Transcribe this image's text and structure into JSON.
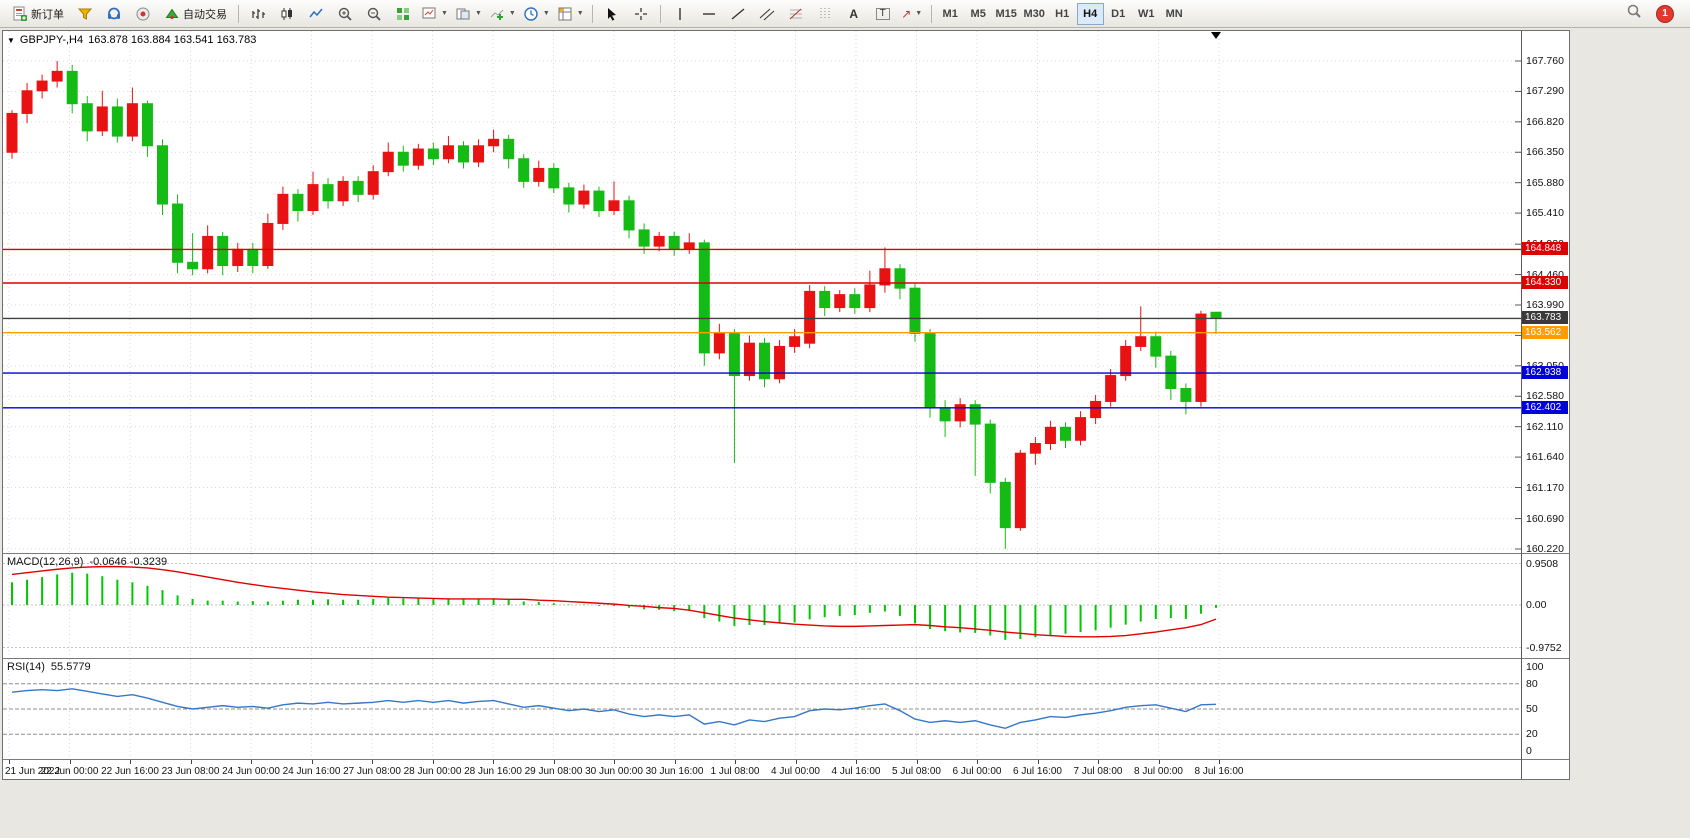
{
  "toolbar": {
    "new_order": "新订单",
    "autotrading": "自动交易",
    "timeframes": [
      "M1",
      "M5",
      "M15",
      "M30",
      "H1",
      "H4",
      "D1",
      "W1",
      "MN"
    ],
    "active_timeframe": "H4",
    "notification_badge": "1",
    "text_tool": "A",
    "label_tool": "T",
    "arrow_tool": "↗"
  },
  "chart_header": {
    "symbol": "GBPJPY-,H4",
    "ohlc": "163.878 163.884 163.541 163.783"
  },
  "price_axis": {
    "ticks": [
      "167.760",
      "167.290",
      "166.820",
      "166.350",
      "165.880",
      "165.410",
      "164.930",
      "164.460",
      "163.990",
      "163.520",
      "163.050",
      "162.580",
      "162.110",
      "161.640",
      "161.170",
      "160.690",
      "160.220"
    ],
    "badges": [
      {
        "text": "164.848",
        "bg": "#DC0000"
      },
      {
        "text": "164.330",
        "bg": "#DC0000"
      },
      {
        "text": "163.783",
        "bg": "#3a3a3a"
      },
      {
        "text": "163.562",
        "bg": "#FF9D00"
      },
      {
        "text": "162.938",
        "bg": "#0000D8"
      },
      {
        "text": "162.402",
        "bg": "#0000D8"
      }
    ]
  },
  "time_axis": {
    "labels": [
      "21 Jun 2022",
      "22 Jun 00:00",
      "22 Jun 16:00",
      "23 Jun 08:00",
      "24 Jun 00:00",
      "24 Jun 16:00",
      "27 Jun 08:00",
      "28 Jun 00:00",
      "28 Jun 16:00",
      "29 Jun 08:00",
      "30 Jun 00:00",
      "30 Jun 16:00",
      "1 Jul 08:00",
      "4 Jul 00:00",
      "4 Jul 16:00",
      "5 Jul 08:00",
      "6 Jul 00:00",
      "6 Jul 16:00",
      "7 Jul 08:00",
      "8 Jul 00:00",
      "8 Jul 16:00"
    ]
  },
  "indicators": {
    "macd": {
      "label": "MACD(12,26,9)",
      "values": "-0.0646 -0.3239",
      "ticks": [
        "0.9508",
        "0.00",
        "-0.9752"
      ]
    },
    "rsi": {
      "label": "RSI(14)",
      "value": "55.5779",
      "ticks": [
        "100",
        "80",
        "50",
        "20",
        "0"
      ]
    }
  },
  "chart_data": {
    "type": "candlestick",
    "title": "GBPJPY-,H4",
    "ylim": [
      160.22,
      167.76
    ],
    "bars_per_label": 4,
    "colors": {
      "up": "#e81212",
      "down": "#15bb15",
      "grid": "#d9d9d9"
    },
    "hlines": [
      {
        "price": 164.848,
        "color": "#DC0000"
      },
      {
        "price": 164.33,
        "color": "#DC0000"
      },
      {
        "price": 163.783,
        "color": "#404040"
      },
      {
        "price": 163.562,
        "color": "#FF9D00"
      },
      {
        "price": 162.938,
        "color": "#0000D8"
      },
      {
        "price": 162.402,
        "color": "#0000D8"
      }
    ],
    "candles_ohlc": [
      [
        166.35,
        167.0,
        166.25,
        166.95
      ],
      [
        166.95,
        167.42,
        166.8,
        167.3
      ],
      [
        167.3,
        167.55,
        167.18,
        167.45
      ],
      [
        167.45,
        167.76,
        167.35,
        167.6
      ],
      [
        167.6,
        167.7,
        166.95,
        167.1
      ],
      [
        167.1,
        167.22,
        166.52,
        166.68
      ],
      [
        166.68,
        167.3,
        166.6,
        167.05
      ],
      [
        167.05,
        167.18,
        166.5,
        166.6
      ],
      [
        166.6,
        167.35,
        166.52,
        167.1
      ],
      [
        167.1,
        167.15,
        166.28,
        166.45
      ],
      [
        166.45,
        166.55,
        165.38,
        165.55
      ],
      [
        165.55,
        165.7,
        164.48,
        164.65
      ],
      [
        164.65,
        165.1,
        164.45,
        164.55
      ],
      [
        164.55,
        165.22,
        164.48,
        165.05
      ],
      [
        165.05,
        165.12,
        164.45,
        164.6
      ],
      [
        164.6,
        164.95,
        164.5,
        164.85
      ],
      [
        164.85,
        164.95,
        164.48,
        164.6
      ],
      [
        164.6,
        165.4,
        164.55,
        165.25
      ],
      [
        165.25,
        165.82,
        165.15,
        165.7
      ],
      [
        165.7,
        165.78,
        165.28,
        165.45
      ],
      [
        165.45,
        166.05,
        165.38,
        165.85
      ],
      [
        165.85,
        165.95,
        165.48,
        165.6
      ],
      [
        165.6,
        165.98,
        165.52,
        165.9
      ],
      [
        165.9,
        165.98,
        165.58,
        165.7
      ],
      [
        165.7,
        166.15,
        165.62,
        166.05
      ],
      [
        166.05,
        166.5,
        165.98,
        166.35
      ],
      [
        166.35,
        166.45,
        166.05,
        166.15
      ],
      [
        166.15,
        166.48,
        166.08,
        166.4
      ],
      [
        166.4,
        166.5,
        166.15,
        166.25
      ],
      [
        166.25,
        166.6,
        166.18,
        166.45
      ],
      [
        166.45,
        166.52,
        166.1,
        166.2
      ],
      [
        166.2,
        166.55,
        166.12,
        166.45
      ],
      [
        166.45,
        166.7,
        166.35,
        166.55
      ],
      [
        166.55,
        166.62,
        166.1,
        166.25
      ],
      [
        166.25,
        166.32,
        165.8,
        165.9
      ],
      [
        165.9,
        166.22,
        165.82,
        166.1
      ],
      [
        166.1,
        166.18,
        165.72,
        165.8
      ],
      [
        165.8,
        165.88,
        165.42,
        165.55
      ],
      [
        165.55,
        165.85,
        165.48,
        165.75
      ],
      [
        165.75,
        165.82,
        165.35,
        165.45
      ],
      [
        165.45,
        165.9,
        165.38,
        165.6
      ],
      [
        165.6,
        165.68,
        165.02,
        165.15
      ],
      [
        165.15,
        165.25,
        164.78,
        164.9
      ],
      [
        164.9,
        165.12,
        164.82,
        165.05
      ],
      [
        165.05,
        165.12,
        164.75,
        164.85
      ],
      [
        164.85,
        165.1,
        164.78,
        164.95
      ],
      [
        164.95,
        165.0,
        163.05,
        163.25
      ],
      [
        163.25,
        163.7,
        163.15,
        163.55
      ],
      [
        163.55,
        163.62,
        161.55,
        162.9
      ],
      [
        162.9,
        163.52,
        162.82,
        163.4
      ],
      [
        163.4,
        163.48,
        162.72,
        162.85
      ],
      [
        162.85,
        163.45,
        162.78,
        163.35
      ],
      [
        163.35,
        163.62,
        163.25,
        163.5
      ],
      [
        163.4,
        164.3,
        163.32,
        164.2
      ],
      [
        164.2,
        164.28,
        163.82,
        163.95
      ],
      [
        163.95,
        164.22,
        163.88,
        164.15
      ],
      [
        164.15,
        164.25,
        163.85,
        163.95
      ],
      [
        163.95,
        164.52,
        163.88,
        164.3
      ],
      [
        164.3,
        164.88,
        164.18,
        164.55
      ],
      [
        164.55,
        164.62,
        164.08,
        164.25
      ],
      [
        164.25,
        164.32,
        163.42,
        163.55
      ],
      [
        163.55,
        163.62,
        162.25,
        162.4
      ],
      [
        162.4,
        162.52,
        161.95,
        162.2
      ],
      [
        162.2,
        162.55,
        162.1,
        162.45
      ],
      [
        162.45,
        162.52,
        161.35,
        162.15
      ],
      [
        162.15,
        162.22,
        161.08,
        161.25
      ],
      [
        161.25,
        161.32,
        160.22,
        160.55
      ],
      [
        160.55,
        161.75,
        160.5,
        161.7
      ],
      [
        161.7,
        161.95,
        161.52,
        161.85
      ],
      [
        161.85,
        162.2,
        161.75,
        162.1
      ],
      [
        162.1,
        162.18,
        161.78,
        161.9
      ],
      [
        161.9,
        162.35,
        161.82,
        162.25
      ],
      [
        162.25,
        162.6,
        162.15,
        162.5
      ],
      [
        162.5,
        163.0,
        162.42,
        162.9
      ],
      [
        162.9,
        163.45,
        162.82,
        163.35
      ],
      [
        163.35,
        163.97,
        163.28,
        163.5
      ],
      [
        163.5,
        163.58,
        163.02,
        163.2
      ],
      [
        163.2,
        163.28,
        162.52,
        162.7
      ],
      [
        162.7,
        162.78,
        162.3,
        162.5
      ],
      [
        162.5,
        163.9,
        162.42,
        163.85
      ],
      [
        163.878,
        163.884,
        163.541,
        163.783
      ]
    ],
    "macd": {
      "ylim": [
        -0.9752,
        0.9508
      ],
      "hist_color": "#00C800",
      "signal_color": "#E00000",
      "histogram": [
        0.52,
        0.58,
        0.64,
        0.7,
        0.74,
        0.72,
        0.66,
        0.58,
        0.52,
        0.44,
        0.34,
        0.22,
        0.14,
        0.1,
        0.1,
        0.08,
        0.09,
        0.08,
        0.1,
        0.12,
        0.12,
        0.13,
        0.12,
        0.12,
        0.14,
        0.16,
        0.15,
        0.15,
        0.14,
        0.15,
        0.13,
        0.14,
        0.15,
        0.12,
        0.08,
        0.07,
        0.04,
        0.01,
        0.01,
        -0.02,
        -0.02,
        -0.06,
        -0.1,
        -0.11,
        -0.14,
        -0.13,
        -0.3,
        -0.38,
        -0.48,
        -0.46,
        -0.46,
        -0.42,
        -0.4,
        -0.33,
        -0.28,
        -0.25,
        -0.23,
        -0.18,
        -0.15,
        -0.25,
        -0.42,
        -0.55,
        -0.6,
        -0.63,
        -0.64,
        -0.7,
        -0.8,
        -0.78,
        -0.74,
        -0.7,
        -0.66,
        -0.62,
        -0.58,
        -0.52,
        -0.45,
        -0.38,
        -0.32,
        -0.3,
        -0.32,
        -0.2,
        -0.0646
      ],
      "signal": [
        0.7,
        0.74,
        0.78,
        0.82,
        0.85,
        0.87,
        0.88,
        0.88,
        0.87,
        0.85,
        0.81,
        0.76,
        0.7,
        0.64,
        0.58,
        0.52,
        0.47,
        0.42,
        0.38,
        0.34,
        0.3,
        0.27,
        0.24,
        0.22,
        0.2,
        0.18,
        0.17,
        0.16,
        0.15,
        0.14,
        0.14,
        0.14,
        0.14,
        0.13,
        0.13,
        0.11,
        0.1,
        0.08,
        0.06,
        0.04,
        0.02,
        -0.01,
        -0.03,
        -0.06,
        -0.08,
        -0.12,
        -0.18,
        -0.24,
        -0.3,
        -0.34,
        -0.38,
        -0.41,
        -0.44,
        -0.46,
        -0.48,
        -0.49,
        -0.49,
        -0.48,
        -0.47,
        -0.46,
        -0.45,
        -0.47,
        -0.5,
        -0.52,
        -0.55,
        -0.58,
        -0.62,
        -0.65,
        -0.68,
        -0.7,
        -0.72,
        -0.73,
        -0.73,
        -0.72,
        -0.7,
        -0.66,
        -0.62,
        -0.57,
        -0.52,
        -0.45,
        -0.3239
      ]
    },
    "rsi": {
      "ylim": [
        0,
        100
      ],
      "levels": [
        80,
        50,
        20
      ],
      "color": "#3577c8",
      "values": [
        70,
        72,
        73,
        72,
        74,
        71,
        68,
        65,
        67,
        63,
        58,
        53,
        50,
        52,
        54,
        52,
        53,
        51,
        55,
        57,
        56,
        58,
        56,
        57,
        58,
        60,
        58,
        60,
        58,
        60,
        57,
        59,
        60,
        56,
        52,
        54,
        51,
        48,
        50,
        47,
        49,
        44,
        41,
        43,
        41,
        43,
        32,
        35,
        31,
        37,
        35,
        39,
        41,
        48,
        50,
        49,
        51,
        54,
        56,
        48,
        38,
        34,
        36,
        34,
        36,
        31,
        27,
        34,
        37,
        41,
        40,
        43,
        45,
        48,
        52,
        54,
        55,
        51,
        47,
        55,
        55.58
      ]
    }
  }
}
